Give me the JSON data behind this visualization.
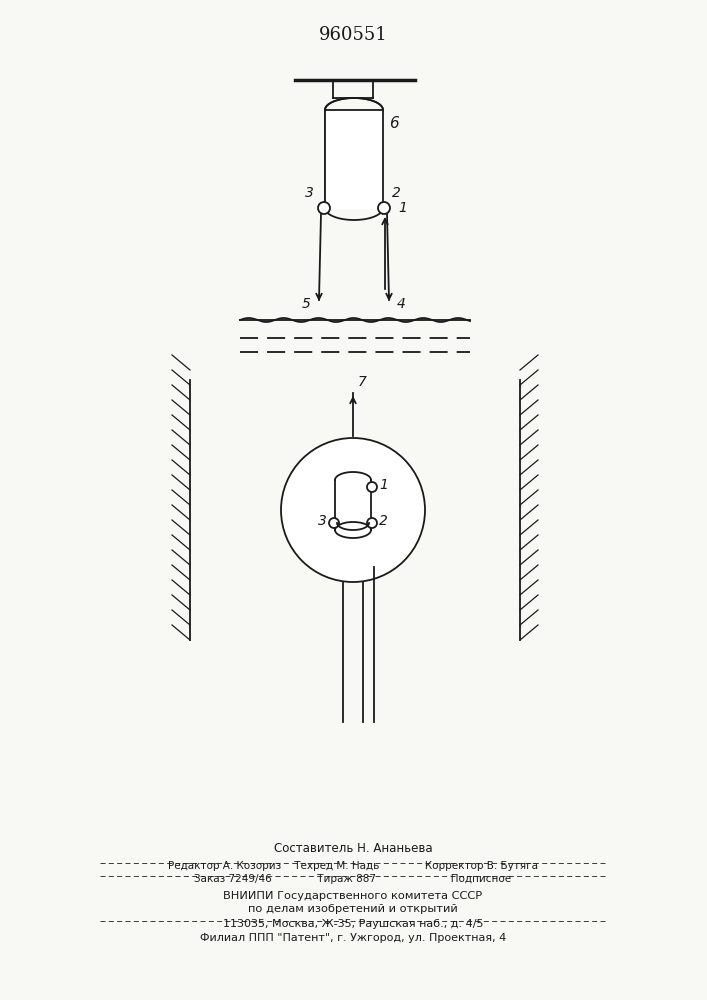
{
  "title": "960551",
  "bg_color": "#f8f8f5",
  "line_color": "#1a1a1a",
  "fig_width": 7.07,
  "fig_height": 10.0,
  "footer_lines": [
    "Составитель Н. Ананьева",
    "Редактор А. Козориз    Техред М. Надь              Корректор В. Бутяга",
    "Заказ 7249/46              Тираж 887                       Подписное",
    "ВНИИПИ Государственного комитета СССР",
    "по делам изобретений и открытий",
    "113035, Москва, Ж-35, Раушская наб., д. 4/5",
    "Филиал ППП \"Патент\", г. Ужгород, ул. Проектная, 4"
  ]
}
